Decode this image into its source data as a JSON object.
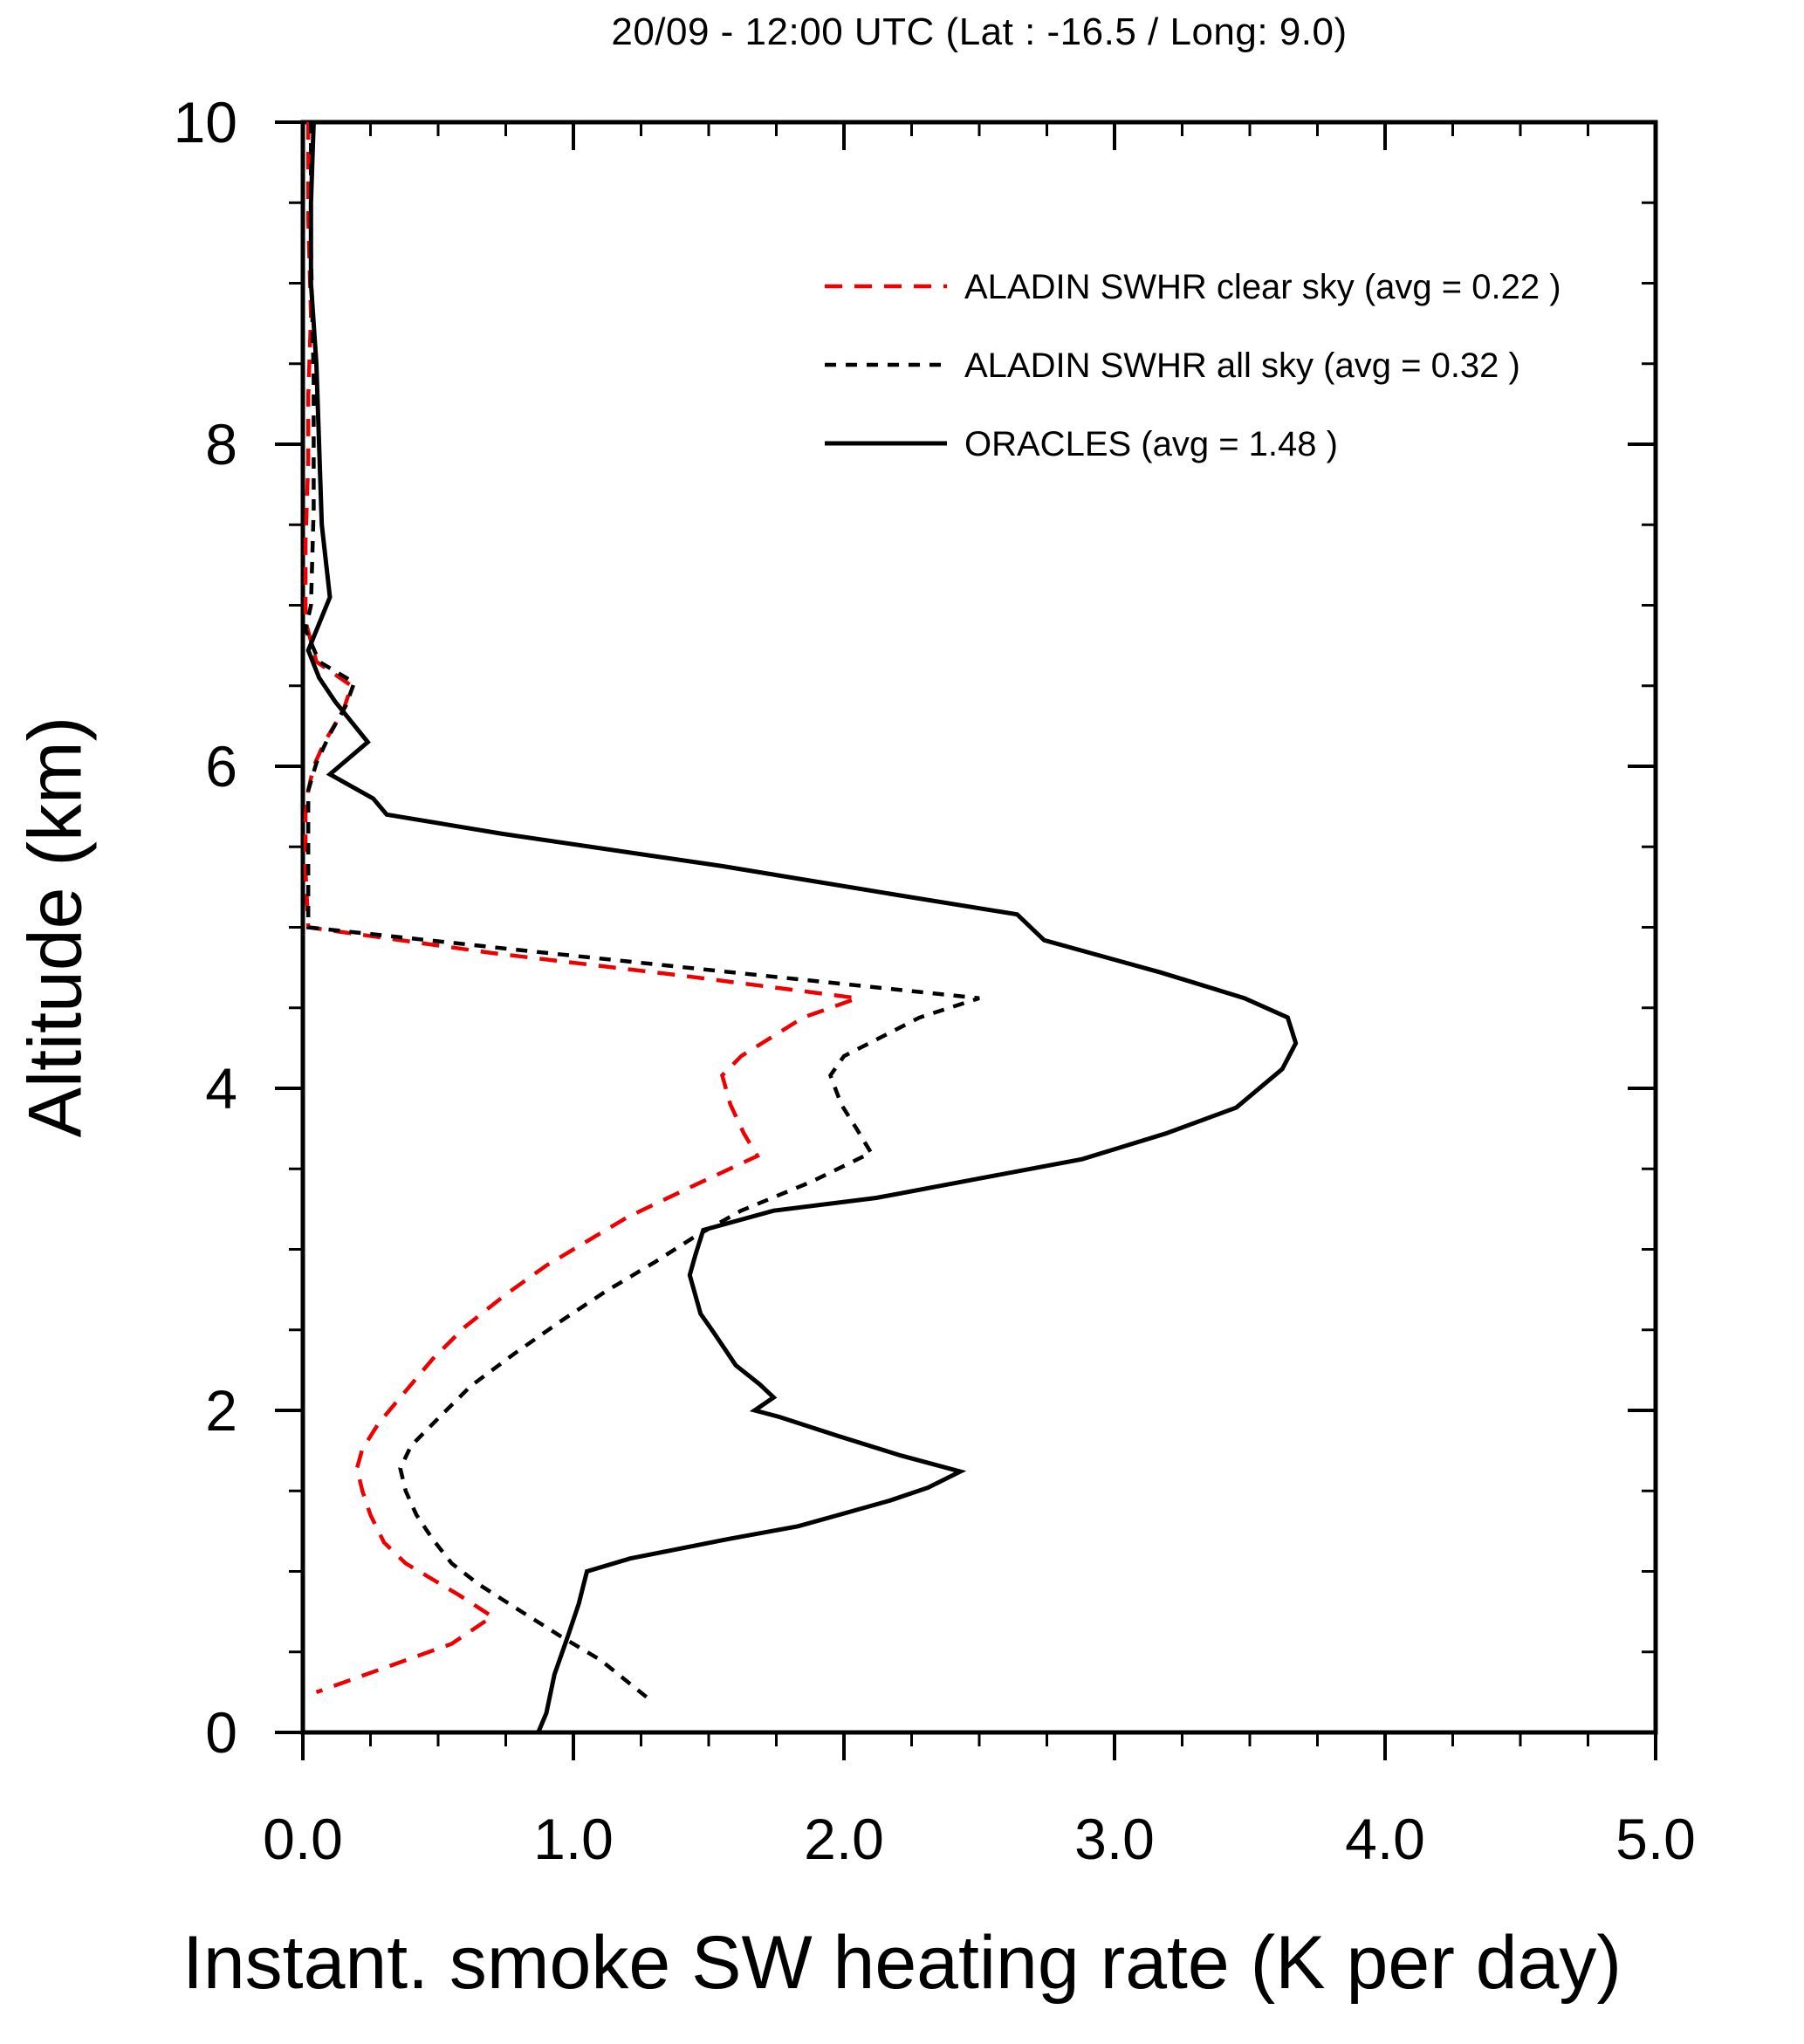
{
  "chart_data": {
    "type": "line",
    "title": "20/09 - 12:00 UTC (Lat : -16.5 / Long: 9.0)",
    "xlabel": "Instant. smoke SW heating rate (K per day)",
    "ylabel": "Altitude (km)",
    "xlim": [
      0.0,
      5.0
    ],
    "ylim": [
      0.0,
      10.0
    ],
    "grid": false,
    "legend_position": "inside-upper-right",
    "x_axis": {
      "major_ticks": [
        0,
        1,
        2,
        3,
        4,
        5
      ],
      "tick_labels": [
        "0.0",
        "1.0",
        "2.0",
        "3.0",
        "4.0",
        "5.0"
      ],
      "minor_step": 0.25
    },
    "y_axis": {
      "major_ticks": [
        0,
        2,
        4,
        6,
        8,
        10
      ],
      "tick_labels": [
        "0",
        "2",
        "4",
        "6",
        "8",
        "10"
      ],
      "minor_step": 0.5
    },
    "series": [
      {
        "name": "ALADIN SWHR clear sky (avg = 0.22 )",
        "avg": 0.22,
        "color": "#ee0000",
        "line_style": "dashed",
        "points": [
          [
            0.02,
            10.0
          ],
          [
            0.02,
            9.4
          ],
          [
            0.03,
            8.8
          ],
          [
            0.02,
            8.3
          ],
          [
            0.02,
            7.9
          ],
          [
            0.01,
            7.4
          ],
          [
            0.01,
            6.9
          ],
          [
            0.05,
            6.65
          ],
          [
            0.18,
            6.5
          ],
          [
            0.15,
            6.35
          ],
          [
            0.08,
            6.15
          ],
          [
            0.04,
            6.0
          ],
          [
            0.02,
            5.85
          ],
          [
            0.01,
            5.7
          ],
          [
            0.01,
            5.35
          ],
          [
            0.02,
            5.0
          ],
          [
            0.7,
            4.84
          ],
          [
            1.4,
            4.7
          ],
          [
            2.05,
            4.56
          ],
          [
            1.85,
            4.44
          ],
          [
            1.62,
            4.2
          ],
          [
            1.55,
            4.08
          ],
          [
            1.58,
            3.9
          ],
          [
            1.63,
            3.72
          ],
          [
            1.68,
            3.58
          ],
          [
            1.45,
            3.4
          ],
          [
            1.2,
            3.2
          ],
          [
            1.05,
            3.05
          ],
          [
            0.9,
            2.9
          ],
          [
            0.75,
            2.72
          ],
          [
            0.6,
            2.52
          ],
          [
            0.48,
            2.32
          ],
          [
            0.38,
            2.12
          ],
          [
            0.28,
            1.92
          ],
          [
            0.22,
            1.76
          ],
          [
            0.2,
            1.64
          ],
          [
            0.22,
            1.5
          ],
          [
            0.25,
            1.35
          ],
          [
            0.3,
            1.18
          ],
          [
            0.38,
            1.05
          ],
          [
            0.48,
            0.95
          ],
          [
            0.58,
            0.85
          ],
          [
            0.7,
            0.72
          ],
          [
            0.55,
            0.55
          ],
          [
            0.3,
            0.4
          ],
          [
            0.05,
            0.25
          ]
        ]
      },
      {
        "name": "ALADIN SWHR all sky (avg = 0.32 )",
        "avg": 0.32,
        "color": "#000000",
        "line_style": "dashed",
        "points": [
          [
            0.03,
            10.0
          ],
          [
            0.03,
            9.2
          ],
          [
            0.04,
            8.4
          ],
          [
            0.04,
            7.6
          ],
          [
            0.03,
            7.0
          ],
          [
            0.01,
            6.85
          ],
          [
            0.06,
            6.65
          ],
          [
            0.19,
            6.52
          ],
          [
            0.16,
            6.38
          ],
          [
            0.1,
            6.2
          ],
          [
            0.05,
            6.02
          ],
          [
            0.02,
            5.85
          ],
          [
            0.02,
            5.5
          ],
          [
            0.02,
            5.0
          ],
          [
            0.85,
            4.85
          ],
          [
            1.7,
            4.7
          ],
          [
            2.5,
            4.56
          ],
          [
            2.28,
            4.44
          ],
          [
            2.0,
            4.2
          ],
          [
            1.95,
            4.08
          ],
          [
            1.99,
            3.9
          ],
          [
            2.05,
            3.74
          ],
          [
            2.1,
            3.6
          ],
          [
            1.88,
            3.42
          ],
          [
            1.62,
            3.24
          ],
          [
            1.45,
            3.08
          ],
          [
            1.3,
            2.92
          ],
          [
            1.12,
            2.74
          ],
          [
            0.95,
            2.55
          ],
          [
            0.78,
            2.35
          ],
          [
            0.62,
            2.15
          ],
          [
            0.5,
            1.95
          ],
          [
            0.4,
            1.78
          ],
          [
            0.36,
            1.64
          ],
          [
            0.38,
            1.5
          ],
          [
            0.42,
            1.35
          ],
          [
            0.48,
            1.2
          ],
          [
            0.55,
            1.05
          ],
          [
            0.65,
            0.92
          ],
          [
            0.78,
            0.78
          ],
          [
            0.95,
            0.6
          ],
          [
            1.1,
            0.45
          ],
          [
            1.27,
            0.22
          ]
        ]
      },
      {
        "name": "ORACLES (avg = 1.48 )",
        "avg": 1.48,
        "color": "#000000",
        "line_style": "solid",
        "points": [
          [
            0.04,
            10.0
          ],
          [
            0.03,
            9.5
          ],
          [
            0.03,
            9.0
          ],
          [
            0.05,
            8.5
          ],
          [
            0.06,
            8.0
          ],
          [
            0.07,
            7.5
          ],
          [
            0.1,
            7.05
          ],
          [
            0.02,
            6.72
          ],
          [
            0.06,
            6.55
          ],
          [
            0.12,
            6.4
          ],
          [
            0.24,
            6.15
          ],
          [
            0.1,
            5.95
          ],
          [
            0.26,
            5.8
          ],
          [
            0.31,
            5.7
          ],
          [
            0.74,
            5.58
          ],
          [
            1.55,
            5.38
          ],
          [
            2.2,
            5.2
          ],
          [
            2.64,
            5.08
          ],
          [
            2.74,
            4.92
          ],
          [
            3.17,
            4.72
          ],
          [
            3.48,
            4.56
          ],
          [
            3.64,
            4.44
          ],
          [
            3.67,
            4.28
          ],
          [
            3.62,
            4.12
          ],
          [
            3.45,
            3.88
          ],
          [
            3.19,
            3.72
          ],
          [
            2.88,
            3.56
          ],
          [
            2.5,
            3.44
          ],
          [
            2.12,
            3.32
          ],
          [
            1.74,
            3.24
          ],
          [
            1.48,
            3.12
          ],
          [
            1.45,
            2.96
          ],
          [
            1.43,
            2.84
          ],
          [
            1.47,
            2.6
          ],
          [
            1.52,
            2.48
          ],
          [
            1.6,
            2.28
          ],
          [
            1.69,
            2.16
          ],
          [
            1.74,
            2.08
          ],
          [
            1.67,
            2.0
          ],
          [
            1.76,
            1.96
          ],
          [
            1.98,
            1.84
          ],
          [
            2.21,
            1.72
          ],
          [
            2.43,
            1.62
          ],
          [
            2.31,
            1.52
          ],
          [
            2.17,
            1.44
          ],
          [
            2.0,
            1.36
          ],
          [
            1.83,
            1.28
          ],
          [
            1.57,
            1.2
          ],
          [
            1.21,
            1.08
          ],
          [
            1.05,
            1.0
          ],
          [
            1.02,
            0.8
          ],
          [
            0.98,
            0.6
          ],
          [
            0.93,
            0.36
          ],
          [
            0.9,
            0.12
          ],
          [
            0.87,
            0.0
          ]
        ]
      }
    ]
  }
}
